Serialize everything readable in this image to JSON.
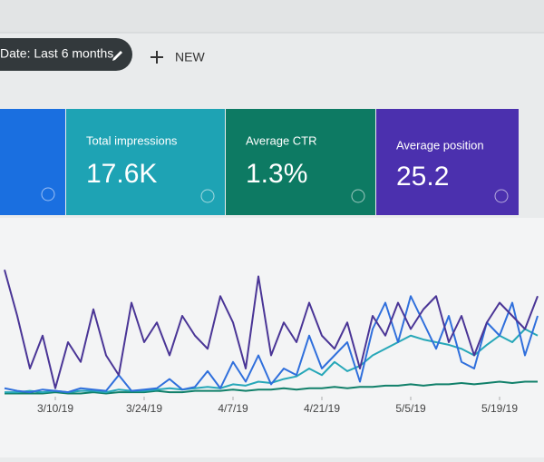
{
  "toolbar": {
    "date_filter": "Date: Last 6 months",
    "new_button": "NEW"
  },
  "cards": [
    {
      "label": "Total impressions",
      "value": "17.6K",
      "color": "#1ea3b4"
    },
    {
      "label": "Average CTR",
      "value": "1.3%",
      "color": "#0d7a63"
    },
    {
      "label": "Average position",
      "value": "25.2",
      "color": "#4b30ae"
    }
  ],
  "first_card_color": "#1a6fe0",
  "chart_data": {
    "type": "line",
    "xlim": [
      0,
      42
    ],
    "ylim": [
      0,
      100
    ],
    "xticks": [
      {
        "value": 4,
        "label": "3/10/19"
      },
      {
        "value": 11,
        "label": "3/24/19"
      },
      {
        "value": 18,
        "label": "4/7/19"
      },
      {
        "value": 25,
        "label": "4/21/19"
      },
      {
        "value": 32,
        "label": "5/5/19"
      },
      {
        "value": 39,
        "label": "5/19/19"
      }
    ],
    "series": [
      {
        "color": "#11806a",
        "values": [
          1,
          1,
          1,
          1,
          2,
          1,
          1,
          2,
          1,
          2,
          2,
          2,
          3,
          2,
          2,
          3,
          3,
          3,
          4,
          3,
          4,
          4,
          5,
          4,
          5,
          5,
          6,
          5,
          6,
          6,
          7,
          7,
          8,
          7,
          8,
          8,
          9,
          8,
          9,
          10,
          9,
          10,
          10
        ]
      },
      {
        "color": "#26a7b8",
        "values": [
          2,
          2,
          3,
          2,
          3,
          2,
          3,
          3,
          2,
          4,
          3,
          3,
          4,
          5,
          4,
          5,
          6,
          5,
          8,
          7,
          10,
          9,
          12,
          14,
          20,
          15,
          25,
          18,
          22,
          30,
          35,
          40,
          45,
          42,
          40,
          38,
          35,
          30,
          38,
          45,
          40,
          50,
          45
        ]
      },
      {
        "color": "#2f6fdc",
        "values": [
          5,
          3,
          2,
          4,
          3,
          2,
          5,
          4,
          3,
          15,
          3,
          4,
          5,
          12,
          4,
          6,
          18,
          5,
          25,
          10,
          30,
          8,
          20,
          15,
          45,
          20,
          30,
          40,
          10,
          50,
          70,
          40,
          75,
          55,
          35,
          60,
          25,
          20,
          55,
          45,
          70,
          30,
          60
        ]
      },
      {
        "color": "#4a3596",
        "values": [
          95,
          60,
          20,
          45,
          5,
          40,
          25,
          65,
          30,
          15,
          70,
          40,
          55,
          30,
          60,
          45,
          35,
          75,
          55,
          20,
          90,
          30,
          55,
          40,
          70,
          45,
          35,
          55,
          20,
          60,
          45,
          70,
          50,
          65,
          75,
          40,
          60,
          30,
          55,
          70,
          60,
          50,
          75
        ]
      }
    ]
  }
}
